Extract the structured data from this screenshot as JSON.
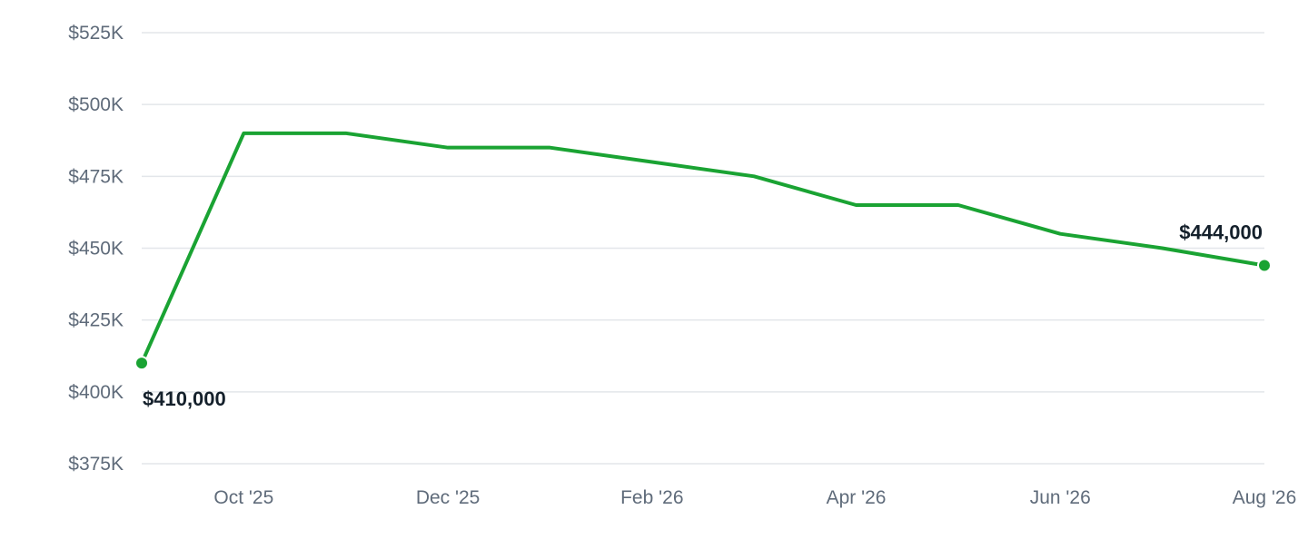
{
  "chart_data": {
    "type": "line",
    "title": "",
    "xlabel": "",
    "ylabel": "",
    "ylim": [
      375000,
      525000
    ],
    "y_ticks": [
      {
        "value": 525000,
        "label": "$525K"
      },
      {
        "value": 500000,
        "label": "$500K"
      },
      {
        "value": 475000,
        "label": "$475K"
      },
      {
        "value": 450000,
        "label": "$450K"
      },
      {
        "value": 425000,
        "label": "$425K"
      },
      {
        "value": 400000,
        "label": "$400K"
      },
      {
        "value": 375000,
        "label": "$375K"
      }
    ],
    "x": [
      "2025-09",
      "2025-10",
      "2025-11",
      "2025-12",
      "2026-01",
      "2026-02",
      "2026-03",
      "2026-04",
      "2026-05",
      "2026-06",
      "2026-07",
      "2026-08"
    ],
    "x_ticks": [
      {
        "x": "2025-10",
        "label": "Oct '25"
      },
      {
        "x": "2025-12",
        "label": "Dec '25"
      },
      {
        "x": "2026-02",
        "label": "Feb '26"
      },
      {
        "x": "2026-04",
        "label": "Apr '26"
      },
      {
        "x": "2026-06",
        "label": "Jun '26"
      },
      {
        "x": "2026-08",
        "label": "Aug '26"
      }
    ],
    "series": [
      {
        "values": [
          410000,
          490000,
          490000,
          485000,
          485000,
          480000,
          475000,
          465000,
          465000,
          455000,
          450000,
          444000
        ]
      }
    ],
    "annotations": {
      "start": {
        "label": "$410,000"
      },
      "end": {
        "label": "$444,000"
      }
    },
    "grid": true,
    "legend": "none",
    "colors": {
      "line": "#1aa333",
      "grid": "#e3e6ea",
      "tick_text": "#5f6b7a",
      "annotation_text": "#14202b"
    }
  }
}
